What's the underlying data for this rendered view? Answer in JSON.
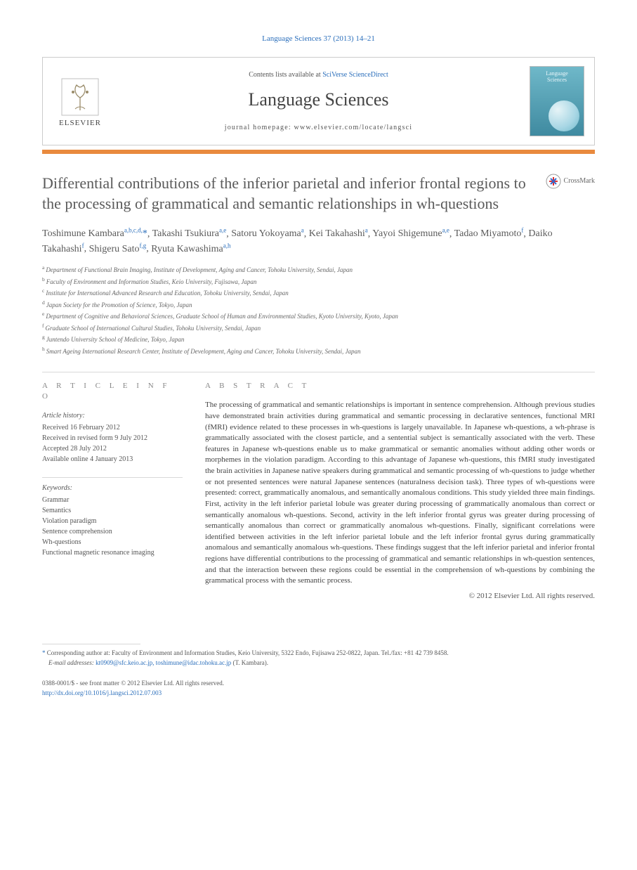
{
  "running_header": "Language Sciences 37 (2013) 14–21",
  "masthead": {
    "publisher_name": "ELSEVIER",
    "contents_prefix": "Contents lists available at ",
    "contents_link_text": "SciVerse ScienceDirect",
    "journal_name": "Language Sciences",
    "homepage_prefix": "journal homepage: ",
    "homepage_url": "www.elsevier.com/locate/langsci",
    "cover_label_l1": "Language",
    "cover_label_l2": "Sciences"
  },
  "crossmark_label": "CrossMark",
  "title": "Differential contributions of the inferior parietal and inferior frontal regions to the processing of grammatical and semantic relationships in wh-questions",
  "authors": [
    {
      "name": "Toshimune Kambara",
      "aff": "a,b,c,d,",
      "star": true
    },
    {
      "name": "Takashi Tsukiura",
      "aff": "a,e"
    },
    {
      "name": "Satoru Yokoyama",
      "aff": "a"
    },
    {
      "name": "Kei Takahashi",
      "aff": "a"
    },
    {
      "name": "Yayoi Shigemune",
      "aff": "a,e"
    },
    {
      "name": "Tadao Miyamoto",
      "aff": "f"
    },
    {
      "name": "Daiko Takahashi",
      "aff": "f"
    },
    {
      "name": "Shigeru Sato",
      "aff": "f,g"
    },
    {
      "name": "Ryuta Kawashima",
      "aff": "a,h"
    }
  ],
  "affiliations": [
    {
      "key": "a",
      "text": "Department of Functional Brain Imaging, Institute of Development, Aging and Cancer, Tohoku University, Sendai, Japan"
    },
    {
      "key": "b",
      "text": "Faculty of Environment and Information Studies, Keio University, Fujisawa, Japan"
    },
    {
      "key": "c",
      "text": "Institute for International Advanced Research and Education, Tohoku University, Sendai, Japan"
    },
    {
      "key": "d",
      "text": "Japan Society for the Promotion of Science, Tokyo, Japan"
    },
    {
      "key": "e",
      "text": "Department of Cognitive and Behavioral Sciences, Graduate School of Human and Environmental Studies, Kyoto University, Kyoto, Japan"
    },
    {
      "key": "f",
      "text": "Graduate School of International Cultural Studies, Tohoku University, Sendai, Japan"
    },
    {
      "key": "g",
      "text": "Juntendo University School of Medicine, Tokyo, Japan"
    },
    {
      "key": "h",
      "text": "Smart Ageing International Research Center, Institute of Development, Aging and Cancer, Tohoku University, Sendai, Japan"
    }
  ],
  "info_head": "A R T I C L E   I N F O",
  "abstract_head": "A B S T R A C T",
  "history_label": "Article history:",
  "history": [
    "Received 16 February 2012",
    "Received in revised form 9 July 2012",
    "Accepted 28 July 2012",
    "Available online 4 January 2013"
  ],
  "keywords_label": "Keywords:",
  "keywords": [
    "Grammar",
    "Semantics",
    "Violation paradigm",
    "Sentence comprehension",
    "Wh-questions",
    "Functional magnetic resonance imaging"
  ],
  "abstract": "The processing of grammatical and semantic relationships is important in sentence comprehension. Although previous studies have demonstrated brain activities during grammatical and semantic processing in declarative sentences, functional MRI (fMRI) evidence related to these processes in wh-questions is largely unavailable. In Japanese wh-questions, a wh-phrase is grammatically associated with the closest particle, and a sentential subject is semantically associated with the verb. These features in Japanese wh-questions enable us to make grammatical or semantic anomalies without adding other words or morphemes in the violation paradigm. According to this advantage of Japanese wh-questions, this fMRI study investigated the brain activities in Japanese native speakers during grammatical and semantic processing of wh-questions to judge whether or not presented sentences were natural Japanese sentences (naturalness decision task). Three types of wh-questions were presented: correct, grammatically anomalous, and semantically anomalous conditions. This study yielded three main findings. First, activity in the left inferior parietal lobule was greater during processing of grammatically anomalous than correct or semantically anomalous wh-questions. Second, activity in the left inferior frontal gyrus was greater during processing of semantically anomalous than correct or grammatically anomalous wh-questions. Finally, significant correlations were identified between activities in the left inferior parietal lobule and the left inferior frontal gyrus during grammatically anomalous and semantically anomalous wh-questions. These findings suggest that the left inferior parietal and inferior frontal regions have differential contributions to the processing of grammatical and semantic relationships in wh-question sentences, and that the interaction between these regions could be essential in the comprehension of wh-questions by combining the grammatical process with the semantic process.",
  "copyright": "© 2012 Elsevier Ltd. All rights reserved.",
  "footnote": {
    "corr": "Corresponding author at: Faculty of Environment and Information Studies, Keio University, 5322 Endo, Fujisawa 252-0822, Japan. Tel./fax: +81 42 739 8458.",
    "email_label": "E-mail addresses:",
    "emails": "kt0909@sfc.keio.ac.jp, toshimune@idac.tohoku.ac.jp",
    "email_suffix": " (T. Kambara)."
  },
  "footer": {
    "line1": "0388-0001/$ - see front matter © 2012 Elsevier Ltd. All rights reserved.",
    "doi": "http://dx.doi.org/10.1016/j.langsci.2012.07.003"
  },
  "colors": {
    "link": "#2a6ebb",
    "accent_bar": "#e98a3e",
    "rule": "#d9d9d9",
    "body_text": "#333333",
    "muted_text": "#666666"
  }
}
